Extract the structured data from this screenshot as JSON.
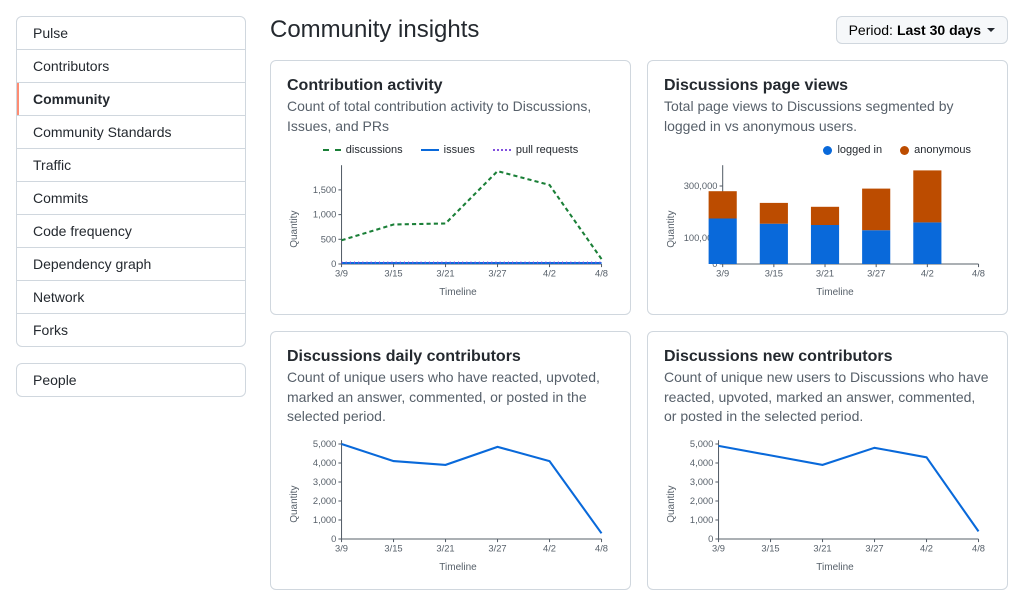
{
  "sidebar": {
    "groups": [
      {
        "items": [
          {
            "label": "Pulse",
            "active": false
          },
          {
            "label": "Contributors",
            "active": false
          },
          {
            "label": "Community",
            "active": true
          },
          {
            "label": "Community Standards",
            "active": false
          },
          {
            "label": "Traffic",
            "active": false
          },
          {
            "label": "Commits",
            "active": false
          },
          {
            "label": "Code frequency",
            "active": false
          },
          {
            "label": "Dependency graph",
            "active": false
          },
          {
            "label": "Network",
            "active": false
          },
          {
            "label": "Forks",
            "active": false
          }
        ]
      },
      {
        "items": [
          {
            "label": "People",
            "active": false
          }
        ]
      }
    ]
  },
  "header": {
    "title": "Community insights",
    "period_label": "Period:",
    "period_value": "Last 30 days"
  },
  "charts": {
    "timeline_ticks": [
      "3/9",
      "3/15",
      "3/21",
      "3/27",
      "4/2",
      "4/8"
    ],
    "x_axis_label": "Timeline",
    "y_axis_label": "Quantity",
    "contribution": {
      "title": "Contribution activity",
      "desc": "Count of total contribution activity to Discussions, Issues, and PRs",
      "legend": [
        {
          "label": "discussions",
          "style": "dash",
          "color": "#1a7f37"
        },
        {
          "label": "issues",
          "style": "line",
          "color": "#0969da"
        },
        {
          "label": "pull requests",
          "style": "dots",
          "color": "#8250df"
        }
      ],
      "y_ticks": [
        0,
        500,
        1000,
        1500
      ],
      "ylim": [
        0,
        2000
      ],
      "series": {
        "discussions": [
          480,
          800,
          820,
          1880,
          1600,
          100
        ],
        "issues": [
          20,
          20,
          20,
          20,
          20,
          20
        ],
        "pull_requests": [
          30,
          30,
          30,
          30,
          30,
          30
        ]
      }
    },
    "page_views": {
      "title": "Discussions page views",
      "desc": "Total page views to Discussions segmented by logged in vs anonymous users.",
      "legend": [
        {
          "label": "logged in",
          "style": "circle",
          "color": "#0969da"
        },
        {
          "label": "anonymous",
          "style": "circle",
          "color": "#bc4c00"
        }
      ],
      "y_ticks": [
        0,
        100000,
        300000
      ],
      "y_tick_labels": [
        "0",
        "100,000",
        "300,000"
      ],
      "ylim": [
        0,
        380000
      ],
      "series": {
        "logged_in": [
          175000,
          155000,
          150000,
          130000,
          160000,
          0
        ],
        "anonymous": [
          105000,
          80000,
          70000,
          160000,
          200000,
          0
        ]
      },
      "bar_width": 0.55
    },
    "daily_contributors": {
      "title": "Discussions daily contributors",
      "desc": "Count of unique users who have reacted, upvoted, marked an answer, commented, or posted in the selected period.",
      "y_ticks": [
        0,
        1000,
        2000,
        3000,
        4000,
        5000
      ],
      "y_tick_labels": [
        "0",
        "1,000",
        "2,000",
        "3,000",
        "4,000",
        "5,000"
      ],
      "ylim": [
        0,
        5200
      ],
      "color": "#0969da",
      "values": [
        5000,
        4100,
        3900,
        4850,
        4100,
        300
      ]
    },
    "new_contributors": {
      "title": "Discussions new contributors",
      "desc": "Count of unique new users to Discussions who have reacted, upvoted, marked an answer, commented, or posted in the selected period.",
      "y_ticks": [
        0,
        1000,
        2000,
        3000,
        4000,
        5000
      ],
      "y_tick_labels": [
        "0",
        "1,000",
        "2,000",
        "3,000",
        "4,000",
        "5,000"
      ],
      "ylim": [
        0,
        5200
      ],
      "color": "#0969da",
      "values": [
        4900,
        4400,
        3900,
        4800,
        4300,
        400
      ]
    }
  }
}
